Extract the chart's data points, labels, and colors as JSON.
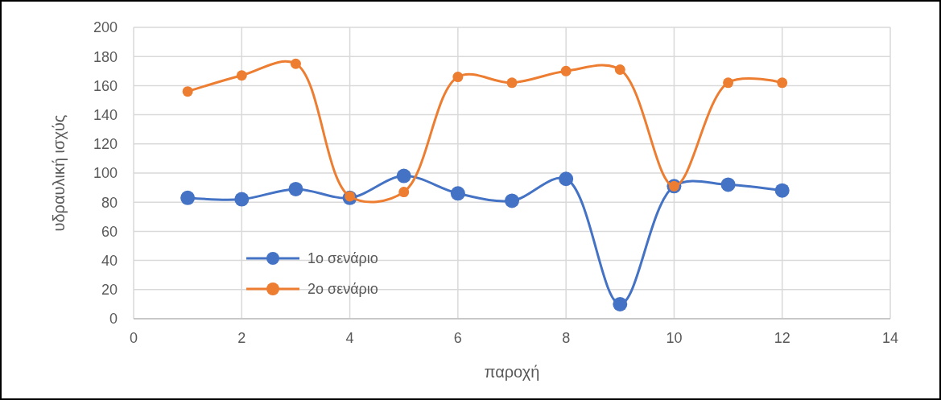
{
  "chart_data": {
    "type": "line",
    "xlabel": "παροχή",
    "ylabel": "υδραυλική ισχύς",
    "x": [
      1,
      2,
      3,
      4,
      5,
      6,
      7,
      8,
      9,
      10,
      11,
      12
    ],
    "series": [
      {
        "name": "1ο σενάριο",
        "color": "#4472c4",
        "values": [
          83,
          82,
          89,
          83,
          98,
          86,
          81,
          96,
          10,
          91,
          92,
          88
        ]
      },
      {
        "name": "2ο σενάριο",
        "color": "#ed7d31",
        "values": [
          156,
          167,
          175,
          84,
          87,
          166,
          162,
          170,
          171,
          91,
          162,
          162
        ]
      }
    ],
    "xlim": [
      0,
      14
    ],
    "xticks": [
      0,
      2,
      4,
      6,
      8,
      10,
      12,
      14
    ],
    "ylim": [
      0,
      200
    ],
    "yticks": [
      0,
      20,
      40,
      60,
      80,
      100,
      120,
      140,
      160,
      180,
      200
    ],
    "grid": true,
    "legend": "bottom left",
    "marker": "circle",
    "line_style": "solid"
  }
}
